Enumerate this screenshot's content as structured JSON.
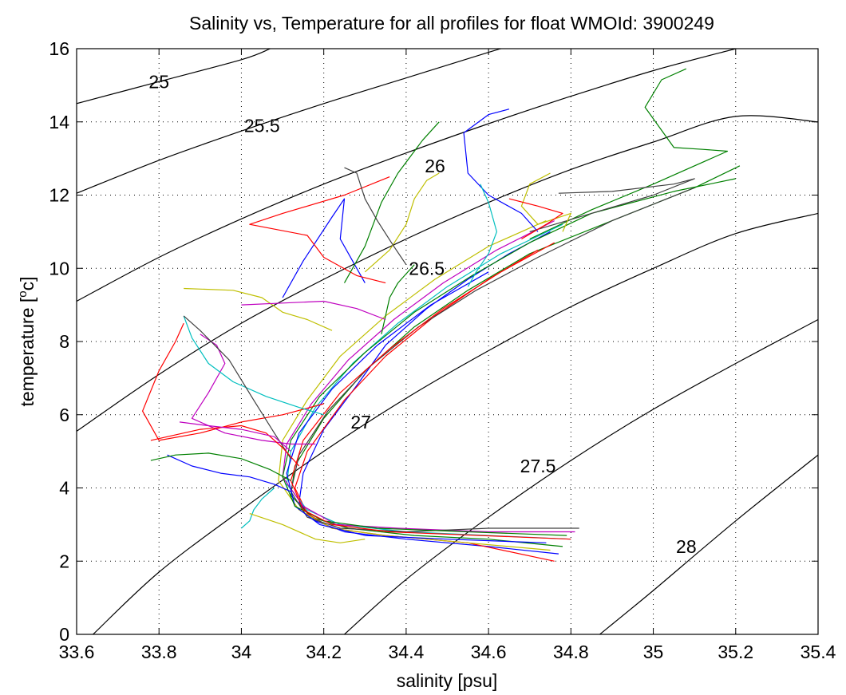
{
  "chart_data": {
    "type": "line",
    "title": "Salinity vs, Temperature for all profiles for float WMOId: 3900249",
    "xlabel": "salinity [psu]",
    "ylabel_main": "temperature [",
    "ylabel_sup": "o",
    "ylabel_tail": "c]",
    "xlim": [
      33.6,
      35.4
    ],
    "ylim": [
      0,
      16
    ],
    "xticks": [
      33.6,
      33.8,
      34,
      34.2,
      34.4,
      34.6,
      34.8,
      35,
      35.2,
      35.4
    ],
    "xtick_labels": [
      "33.6",
      "33.8",
      "34",
      "34.2",
      "34.4",
      "34.6",
      "34.8",
      "35",
      "35.2",
      "35.4"
    ],
    "yticks": [
      0,
      2,
      4,
      6,
      8,
      10,
      12,
      14,
      16
    ],
    "ytick_labels": [
      "0",
      "2",
      "4",
      "6",
      "8",
      "10",
      "12",
      "14",
      "16"
    ],
    "grid": true,
    "density_contours": [
      {
        "label": "25",
        "points": [
          [
            33.6,
            14.5
          ],
          [
            33.8,
            15.1
          ],
          [
            34.0,
            15.7
          ],
          [
            34.07,
            16.0
          ]
        ],
        "label_at": [
          33.8,
          15.1
        ]
      },
      {
        "label": "25.5",
        "points": [
          [
            33.6,
            12.05
          ],
          [
            33.8,
            12.95
          ],
          [
            34.0,
            13.75
          ],
          [
            34.2,
            14.5
          ],
          [
            34.4,
            15.2
          ],
          [
            34.6,
            15.9
          ],
          [
            34.63,
            16.0
          ]
        ],
        "label_at": [
          34.05,
          13.9
        ]
      },
      {
        "label": "26",
        "points": [
          [
            33.6,
            9.1
          ],
          [
            33.8,
            10.3
          ],
          [
            34.0,
            11.35
          ],
          [
            34.2,
            12.3
          ],
          [
            34.4,
            13.15
          ],
          [
            34.6,
            13.95
          ],
          [
            34.8,
            14.7
          ],
          [
            35.0,
            15.4
          ],
          [
            35.2,
            16.0
          ]
        ],
        "label_at": [
          34.47,
          12.8
        ]
      },
      {
        "label": "26.5",
        "points": [
          [
            33.6,
            5.55
          ],
          [
            33.8,
            7.1
          ],
          [
            34.0,
            8.5
          ],
          [
            34.2,
            9.7
          ],
          [
            34.4,
            10.8
          ],
          [
            34.6,
            11.8
          ],
          [
            34.8,
            12.7
          ],
          [
            35.0,
            13.45
          ],
          [
            35.2,
            14.15
          ],
          [
            35.4,
            14.0
          ]
        ],
        "label_at": [
          34.45,
          10.0
        ]
      },
      {
        "label": "27",
        "points": [
          [
            33.64,
            0.0
          ],
          [
            33.8,
            1.7
          ],
          [
            34.0,
            3.4
          ],
          [
            34.2,
            5.0
          ],
          [
            34.4,
            6.45
          ],
          [
            34.6,
            7.75
          ],
          [
            34.8,
            8.95
          ],
          [
            35.0,
            10.0
          ],
          [
            35.2,
            10.95
          ],
          [
            35.4,
            11.5
          ]
        ],
        "label_at": [
          34.29,
          5.8
        ]
      },
      {
        "label": "27.5",
        "points": [
          [
            34.25,
            0.0
          ],
          [
            34.4,
            1.5
          ],
          [
            34.6,
            3.2
          ],
          [
            34.8,
            4.75
          ],
          [
            35.0,
            6.15
          ],
          [
            35.2,
            7.4
          ],
          [
            35.4,
            8.6
          ]
        ],
        "label_at": [
          34.72,
          4.6
        ]
      },
      {
        "label": "28",
        "points": [
          [
            34.87,
            0.0
          ],
          [
            35.0,
            1.2
          ],
          [
            35.2,
            3.1
          ],
          [
            35.4,
            4.9
          ]
        ],
        "label_at": [
          35.08,
          2.4
        ]
      }
    ],
    "series": [
      {
        "color": "#0000ff",
        "x": [
          34.77,
          34.6,
          34.4,
          34.25,
          34.18,
          34.14,
          34.15,
          34.2,
          34.28,
          34.35,
          34.45,
          34.55,
          34.65,
          34.75
        ],
        "y": [
          2.2,
          2.4,
          2.6,
          2.8,
          3.1,
          3.6,
          4.4,
          5.6,
          6.8,
          7.9,
          8.9,
          9.7,
          10.4,
          11.0
        ]
      },
      {
        "color": "#008000",
        "x": [
          34.78,
          34.6,
          34.42,
          34.26,
          34.17,
          34.12,
          34.13,
          34.2,
          34.3,
          34.42,
          34.55,
          34.7,
          34.9,
          35.1,
          35.21
        ],
        "y": [
          2.4,
          2.6,
          2.7,
          2.9,
          3.2,
          3.8,
          4.6,
          5.9,
          7.2,
          8.4,
          9.4,
          10.4,
          11.3,
          12.2,
          12.8
        ]
      },
      {
        "color": "#ff0000",
        "x": [
          34.76,
          34.55,
          34.35,
          34.22,
          34.16,
          34.13,
          34.16,
          34.25,
          34.35,
          34.47,
          34.6,
          34.72
        ],
        "y": [
          2.0,
          2.5,
          2.7,
          2.9,
          3.3,
          4.0,
          5.0,
          6.4,
          7.6,
          8.7,
          9.7,
          10.5
        ]
      },
      {
        "color": "#00bfbf",
        "x": [
          34.8,
          34.6,
          34.4,
          34.24,
          34.16,
          34.11,
          34.12,
          34.18,
          34.27,
          34.38,
          34.5,
          34.63,
          34.78
        ],
        "y": [
          2.6,
          2.7,
          2.8,
          3.0,
          3.4,
          4.1,
          5.0,
          6.2,
          7.4,
          8.5,
          9.5,
          10.4,
          11.2
        ]
      },
      {
        "color": "#bf00bf",
        "x": [
          34.81,
          34.6,
          34.38,
          34.23,
          34.15,
          34.1,
          34.11,
          34.17,
          34.26,
          34.37,
          34.49,
          34.62,
          34.76
        ],
        "y": [
          2.8,
          2.8,
          2.9,
          3.0,
          3.5,
          4.3,
          5.2,
          6.3,
          7.5,
          8.6,
          9.6,
          10.5,
          11.3
        ]
      },
      {
        "color": "#bfbf00",
        "x": [
          34.75,
          34.55,
          34.35,
          34.22,
          34.14,
          34.09,
          34.1,
          34.16,
          34.24,
          34.35,
          34.47,
          34.6,
          34.74
        ],
        "y": [
          2.3,
          2.5,
          2.7,
          2.9,
          3.4,
          4.2,
          5.3,
          6.4,
          7.6,
          8.7,
          9.7,
          10.6,
          11.3
        ]
      },
      {
        "color": "#404040",
        "x": [
          34.82,
          34.6,
          34.4,
          34.24,
          34.16,
          34.12,
          34.14,
          34.21,
          34.31,
          34.43,
          34.57,
          34.72,
          34.9,
          35.1
        ],
        "y": [
          2.9,
          2.9,
          2.8,
          2.9,
          3.2,
          3.9,
          4.9,
          6.1,
          7.3,
          8.4,
          9.4,
          10.3,
          11.3,
          12.2
        ]
      },
      {
        "color": "#0000ff",
        "x": [
          34.74,
          34.5,
          34.3,
          34.19,
          34.13,
          34.11,
          34.14,
          34.22,
          34.33,
          34.46,
          34.6
        ],
        "y": [
          2.5,
          2.6,
          2.7,
          3.0,
          3.5,
          4.4,
          5.5,
          6.7,
          7.9,
          9.0,
          9.9
        ]
      },
      {
        "color": "#008000",
        "x": [
          34.79,
          34.55,
          34.33,
          34.2,
          34.13,
          34.1,
          34.12,
          34.19,
          34.3,
          34.42,
          34.56,
          34.7,
          34.85,
          35.05,
          35.2
        ],
        "y": [
          2.7,
          2.8,
          2.9,
          3.1,
          3.5,
          4.3,
          5.3,
          6.5,
          7.7,
          8.8,
          9.8,
          10.7,
          11.5,
          12.1,
          12.45
        ]
      },
      {
        "color": "#ff0000",
        "x": [
          34.8,
          34.58,
          34.36,
          34.22,
          34.15,
          34.12,
          34.15,
          34.24,
          34.36,
          34.49,
          34.63,
          34.76
        ],
        "y": [
          2.6,
          2.7,
          2.8,
          3.0,
          3.4,
          4.2,
          5.3,
          6.6,
          7.8,
          8.9,
          9.9,
          10.7
        ]
      },
      {
        "color": "#0000ff",
        "x": [
          34.1,
          34.15,
          34.22,
          34.25,
          34.24,
          34.28,
          34.3
        ],
        "y": [
          9.2,
          10.2,
          11.4,
          11.9,
          10.8,
          10.0,
          9.6
        ]
      },
      {
        "color": "#ff0000",
        "x": [
          34.36,
          34.25,
          34.1,
          34.02,
          34.16,
          34.2,
          34.28,
          34.35
        ],
        "y": [
          12.5,
          12.0,
          11.5,
          11.2,
          10.9,
          10.3,
          9.8,
          9.6
        ]
      },
      {
        "color": "#008000",
        "x": [
          34.48,
          34.44,
          34.38,
          34.34,
          34.3,
          34.25
        ],
        "y": [
          14.0,
          13.5,
          12.6,
          11.8,
          10.6,
          9.6
        ]
      },
      {
        "color": "#bfbf00",
        "x": [
          34.48,
          34.45,
          34.42,
          34.4,
          34.36,
          34.3
        ],
        "y": [
          12.6,
          12.4,
          11.9,
          11.2,
          10.5,
          9.9
        ]
      },
      {
        "color": "#0000ff",
        "x": [
          34.65,
          34.6,
          34.54,
          34.55,
          34.6,
          34.68,
          34.72
        ],
        "y": [
          14.35,
          14.2,
          13.7,
          12.6,
          12.0,
          11.5,
          11.0
        ]
      },
      {
        "color": "#008000",
        "x": [
          35.08,
          35.02,
          34.98,
          35.05,
          35.12,
          35.18,
          35.0,
          34.85,
          34.7
        ],
        "y": [
          15.45,
          15.15,
          14.4,
          13.3,
          13.25,
          13.2,
          12.3,
          11.6,
          10.8
        ]
      },
      {
        "color": "#404040",
        "x": [
          34.77,
          34.9,
          35.05,
          35.1,
          35.0,
          34.85,
          34.7
        ],
        "y": [
          12.05,
          12.1,
          12.3,
          12.45,
          12.0,
          11.5,
          11.0
        ]
      },
      {
        "color": "#ff0000",
        "x": [
          33.86,
          33.84,
          33.8,
          33.76,
          33.8,
          33.9,
          34.0,
          34.1,
          34.2
        ],
        "y": [
          8.5,
          8.0,
          7.2,
          6.1,
          5.3,
          5.5,
          5.8,
          6.0,
          6.3
        ]
      },
      {
        "color": "#bf00bf",
        "x": [
          33.9,
          33.94,
          33.96,
          33.92,
          33.88,
          33.96,
          34.05,
          34.12,
          34.18
        ],
        "y": [
          8.2,
          7.9,
          7.4,
          6.6,
          5.9,
          5.5,
          5.3,
          5.2,
          5.2
        ]
      },
      {
        "color": "#00bfbf",
        "x": [
          33.86,
          33.88,
          33.92,
          33.98,
          34.06,
          34.14,
          34.2
        ],
        "y": [
          8.7,
          8.1,
          7.4,
          6.9,
          6.5,
          6.2,
          6.0
        ]
      },
      {
        "color": "#0000ff",
        "x": [
          33.82,
          33.88,
          33.95,
          34.02,
          34.08,
          34.12
        ],
        "y": [
          4.9,
          4.6,
          4.4,
          4.3,
          4.1,
          3.9
        ]
      },
      {
        "color": "#008000",
        "x": [
          33.78,
          33.84,
          33.92,
          34.0,
          34.07,
          34.12
        ],
        "y": [
          4.75,
          4.9,
          4.95,
          4.8,
          4.5,
          4.2
        ]
      },
      {
        "color": "#404040",
        "x": [
          33.86,
          33.9,
          33.97,
          34.03,
          34.08,
          34.12
        ],
        "y": [
          8.7,
          8.3,
          7.5,
          6.4,
          5.5,
          4.8
        ]
      },
      {
        "color": "#bfbf00",
        "x": [
          33.86,
          33.98,
          34.05,
          34.1,
          34.16,
          34.22
        ],
        "y": [
          9.45,
          9.4,
          9.2,
          8.8,
          8.6,
          8.3
        ]
      },
      {
        "color": "#ff0000",
        "x": [
          33.78,
          33.9,
          34.0,
          34.06,
          34.1,
          34.14
        ],
        "y": [
          5.3,
          5.6,
          5.7,
          5.5,
          5.1,
          4.6
        ]
      },
      {
        "color": "#bf00bf",
        "x": [
          33.85,
          33.92,
          34.0,
          34.08,
          34.12
        ],
        "y": [
          5.8,
          5.7,
          5.6,
          5.4,
          5.0
        ]
      },
      {
        "color": "#00bfbf",
        "x": [
          34.0,
          34.02,
          34.03,
          34.05,
          34.08
        ],
        "y": [
          2.9,
          3.1,
          3.4,
          3.7,
          4.0
        ]
      },
      {
        "color": "#bfbf00",
        "x": [
          34.02,
          34.1,
          34.18,
          34.24,
          34.3
        ],
        "y": [
          3.3,
          3.0,
          2.6,
          2.5,
          2.6
        ]
      },
      {
        "color": "#008000",
        "x": [
          34.42,
          34.38,
          34.36,
          34.35,
          34.34
        ],
        "y": [
          10.1,
          9.6,
          9.2,
          8.7,
          8.2
        ]
      },
      {
        "color": "#bf00bf",
        "x": [
          34.0,
          34.1,
          34.2,
          34.28,
          34.35
        ],
        "y": [
          9.0,
          9.05,
          9.1,
          8.9,
          8.6
        ]
      },
      {
        "color": "#404040",
        "x": [
          34.25,
          34.28,
          34.3,
          34.33,
          34.37,
          34.4
        ],
        "y": [
          12.75,
          12.6,
          11.9,
          11.3,
          10.6,
          10.1
        ]
      },
      {
        "color": "#00bfbf",
        "x": [
          34.58,
          34.6,
          34.62,
          34.6,
          34.57,
          34.55
        ],
        "y": [
          12.3,
          11.8,
          11.0,
          10.4,
          9.9,
          9.5
        ]
      },
      {
        "color": "#bfbf00",
        "x": [
          34.75,
          34.7,
          34.68,
          34.72,
          34.8,
          34.78
        ],
        "y": [
          12.6,
          12.3,
          11.7,
          11.2,
          11.5,
          11.0
        ]
      },
      {
        "color": "#ff0000",
        "x": [
          34.65,
          34.72,
          34.78,
          34.74,
          34.68
        ],
        "y": [
          11.9,
          11.7,
          11.5,
          11.2,
          10.8
        ]
      }
    ]
  }
}
